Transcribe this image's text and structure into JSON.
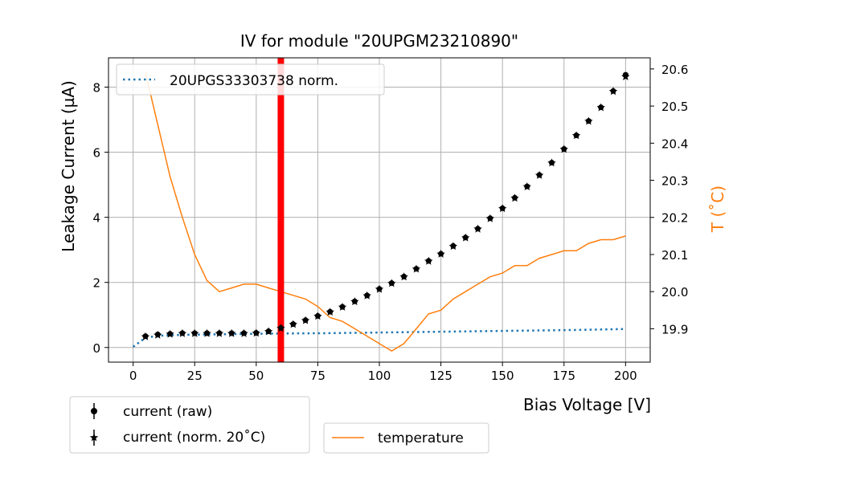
{
  "chart_data": {
    "type": "scatter",
    "title": "IV for module \"20UPGM23210890\"",
    "xlabel": "Bias Voltage [V]",
    "ylabel": "Leakage Current (µA)",
    "y2label": "T (˚C)",
    "xlim": [
      -10,
      210
    ],
    "ylim": [
      -0.45,
      8.9
    ],
    "y2lim": [
      19.81,
      20.63
    ],
    "grid": true,
    "x_ticks": [
      0,
      25,
      50,
      75,
      100,
      125,
      150,
      175,
      200
    ],
    "y_ticks": [
      0,
      2,
      4,
      6,
      8
    ],
    "y2_ticks": [
      19.9,
      20.0,
      20.1,
      20.2,
      20.3,
      20.4,
      20.5,
      20.6
    ],
    "y2_tick_labels": [
      "19.9",
      "20.0",
      "20.1",
      "20.2",
      "20.3",
      "20.4",
      "20.5",
      "20.6"
    ],
    "vline": {
      "x": 60,
      "color": "#ff0000"
    },
    "legend_top": {
      "label": "20UPGS33303738 norm.",
      "placement": "upper-left"
    },
    "legend_current": [
      {
        "label": "current (raw)",
        "marker": "circle"
      },
      {
        "label": "current (norm. 20˚C)",
        "marker": "star"
      }
    ],
    "legend_temperature": {
      "label": "temperature"
    },
    "colors": {
      "temperature": "#ff7f0e",
      "reference": "#1f77b4",
      "current": "#000000",
      "vline": "#ff0000"
    },
    "series": [
      {
        "name": "current (raw)",
        "axis": "left",
        "marker": "circle",
        "x": [
          5,
          10,
          15,
          20,
          25,
          30,
          35,
          40,
          45,
          50,
          55,
          60,
          65,
          70,
          75,
          80,
          85,
          90,
          95,
          100,
          105,
          110,
          115,
          120,
          125,
          130,
          135,
          140,
          145,
          150,
          155,
          160,
          165,
          170,
          175,
          180,
          185,
          190,
          195,
          200
        ],
        "y": [
          0.35,
          0.4,
          0.42,
          0.44,
          0.44,
          0.44,
          0.44,
          0.44,
          0.44,
          0.45,
          0.5,
          0.6,
          0.72,
          0.84,
          0.97,
          1.1,
          1.25,
          1.42,
          1.6,
          1.8,
          1.98,
          2.18,
          2.42,
          2.66,
          2.88,
          3.12,
          3.38,
          3.65,
          3.97,
          4.28,
          4.6,
          4.95,
          5.3,
          5.68,
          6.1,
          6.52,
          6.96,
          7.38,
          7.88,
          8.38
        ]
      },
      {
        "name": "current (norm. 20˚C)",
        "axis": "left",
        "marker": "star",
        "x": [
          5,
          10,
          15,
          20,
          25,
          30,
          35,
          40,
          45,
          50,
          55,
          60,
          65,
          70,
          75,
          80,
          85,
          90,
          95,
          100,
          105,
          110,
          115,
          120,
          125,
          130,
          135,
          140,
          145,
          150,
          155,
          160,
          165,
          170,
          175,
          180,
          185,
          190,
          195,
          200
        ],
        "y": [
          0.33,
          0.38,
          0.41,
          0.43,
          0.43,
          0.43,
          0.43,
          0.43,
          0.43,
          0.44,
          0.49,
          0.59,
          0.71,
          0.83,
          0.96,
          1.09,
          1.24,
          1.41,
          1.59,
          1.79,
          1.97,
          2.17,
          2.41,
          2.65,
          2.87,
          3.11,
          3.37,
          3.64,
          3.96,
          4.27,
          4.59,
          4.94,
          5.29,
          5.67,
          6.09,
          6.51,
          6.95,
          7.37,
          7.87,
          8.32
        ]
      },
      {
        "name": "20UPGS33303738 norm.",
        "axis": "left",
        "style": "dotted",
        "x": [
          0,
          5,
          10,
          20,
          40,
          60,
          80,
          100,
          120,
          140,
          160,
          180,
          200
        ],
        "y": [
          0.02,
          0.3,
          0.36,
          0.39,
          0.41,
          0.43,
          0.44,
          0.46,
          0.48,
          0.5,
          0.52,
          0.54,
          0.57
        ]
      },
      {
        "name": "temperature",
        "axis": "right",
        "style": "line",
        "x": [
          5,
          10,
          15,
          20,
          25,
          30,
          35,
          40,
          45,
          50,
          55,
          60,
          65,
          70,
          75,
          80,
          85,
          90,
          95,
          100,
          105,
          110,
          115,
          120,
          125,
          130,
          135,
          140,
          145,
          150,
          155,
          160,
          165,
          170,
          175,
          180,
          185,
          190,
          195,
          200
        ],
        "y": [
          20.59,
          20.45,
          20.31,
          20.2,
          20.1,
          20.03,
          20.0,
          20.01,
          20.02,
          20.02,
          20.01,
          20.0,
          19.99,
          19.98,
          19.96,
          19.93,
          19.92,
          19.9,
          19.88,
          19.86,
          19.84,
          19.86,
          19.9,
          19.94,
          19.95,
          19.98,
          20.0,
          20.02,
          20.04,
          20.05,
          20.07,
          20.07,
          20.09,
          20.1,
          20.11,
          20.11,
          20.13,
          20.14,
          20.14,
          20.15
        ]
      }
    ]
  }
}
